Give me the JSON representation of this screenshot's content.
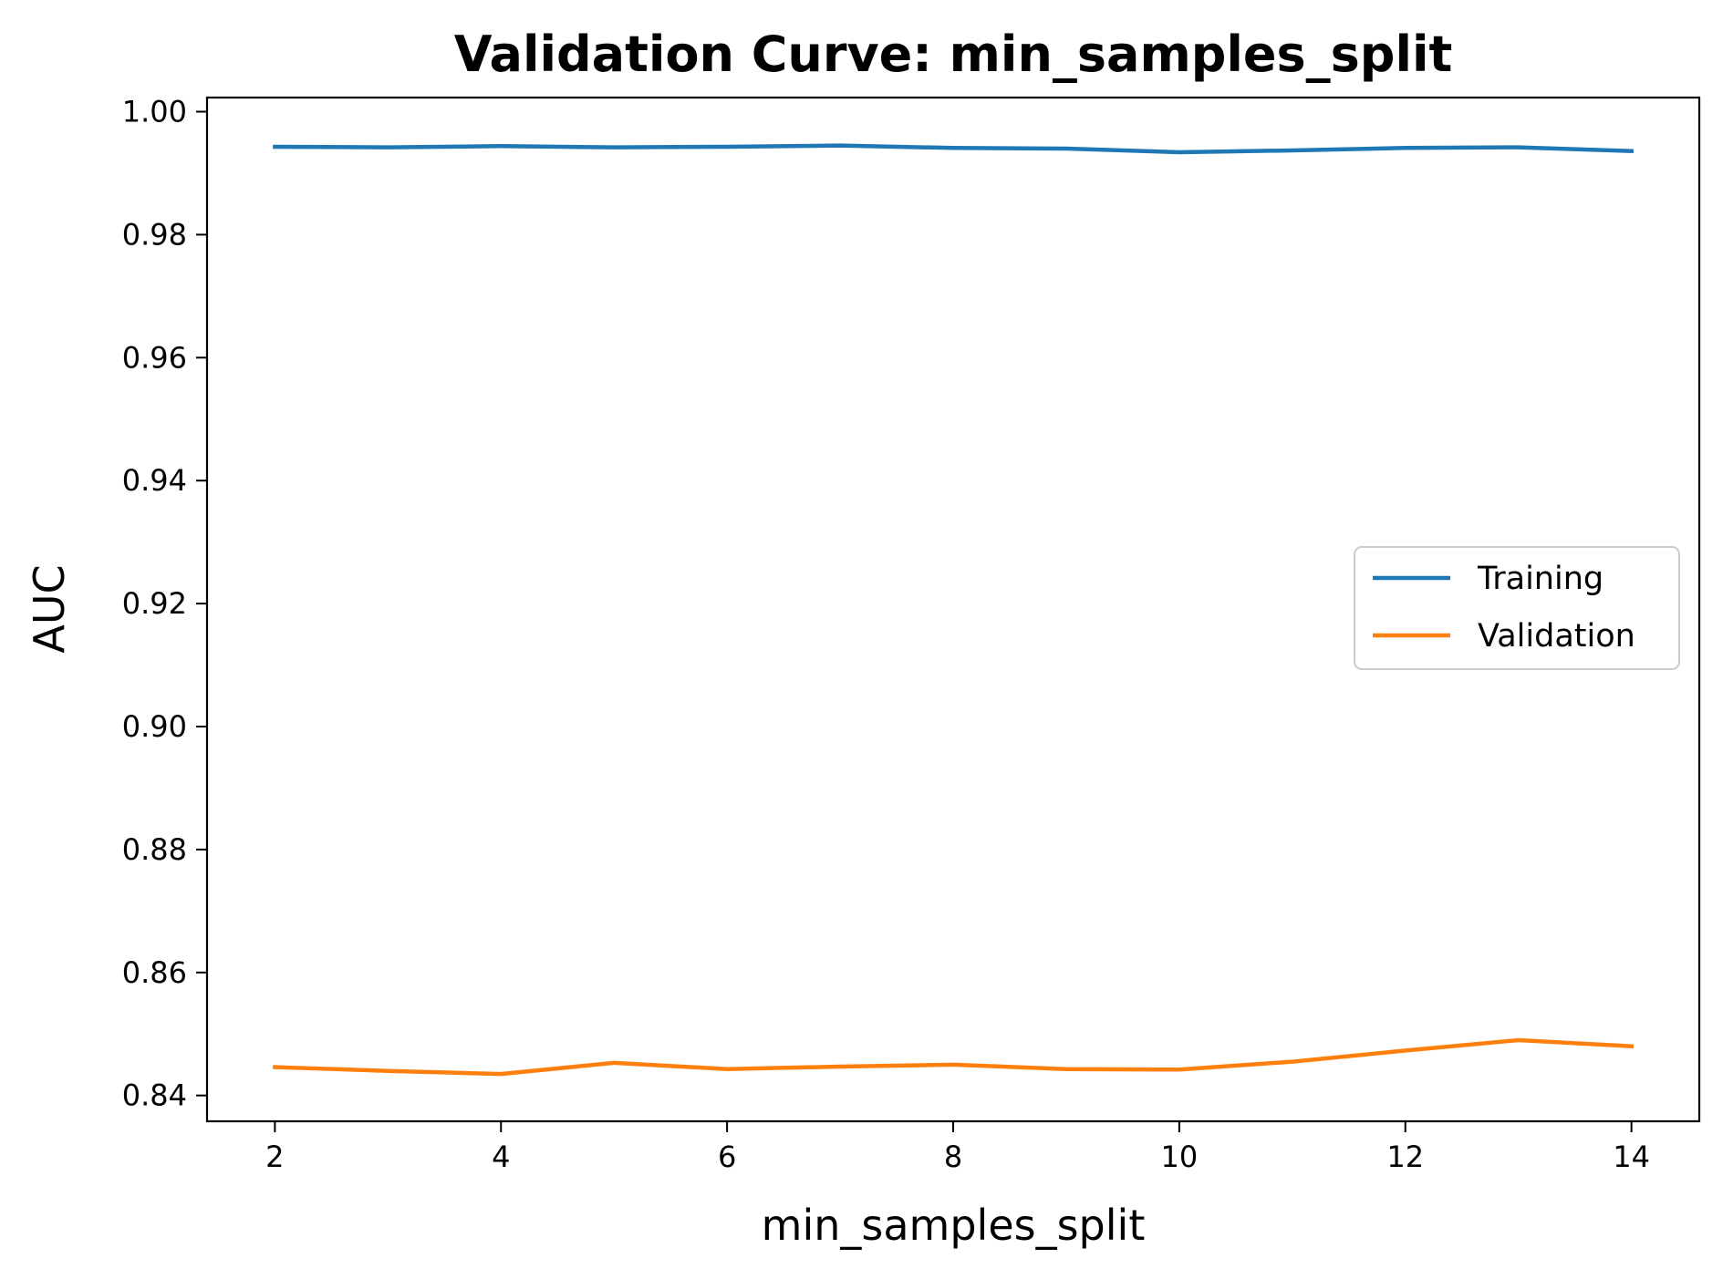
{
  "chart_data": {
    "type": "line",
    "title": "Validation Curve: min_samples_split",
    "xlabel": "min_samples_split",
    "ylabel": "AUC",
    "x": [
      2,
      3,
      4,
      5,
      6,
      7,
      8,
      9,
      10,
      11,
      12,
      13,
      14
    ],
    "series": [
      {
        "name": "Training",
        "color": "#1f77b4",
        "values": [
          0.9943,
          0.9942,
          0.9944,
          0.9942,
          0.9943,
          0.9945,
          0.9941,
          0.994,
          0.9934,
          0.9937,
          0.9941,
          0.9942,
          0.9936
        ]
      },
      {
        "name": "Validation",
        "color": "#ff7f0e",
        "values": [
          0.8446,
          0.844,
          0.8435,
          0.8453,
          0.8443,
          0.8447,
          0.845,
          0.8443,
          0.8442,
          0.8455,
          0.8473,
          0.849,
          0.848
        ]
      }
    ],
    "xlim": [
      1.4,
      14.6
    ],
    "ylim": [
      0.8358,
      1.0023
    ],
    "xticks": [
      2,
      4,
      6,
      8,
      10,
      12,
      14
    ],
    "xtick_labels": [
      "2",
      "4",
      "6",
      "8",
      "10",
      "12",
      "14"
    ],
    "yticks": [
      0.84,
      0.86,
      0.88,
      0.9,
      0.92,
      0.94,
      0.96,
      0.98,
      1.0
    ],
    "ytick_labels": [
      "0.84",
      "0.86",
      "0.88",
      "0.90",
      "0.92",
      "0.94",
      "0.96",
      "0.98",
      "1.00"
    ],
    "grid": false,
    "legend_position": "center-right"
  }
}
